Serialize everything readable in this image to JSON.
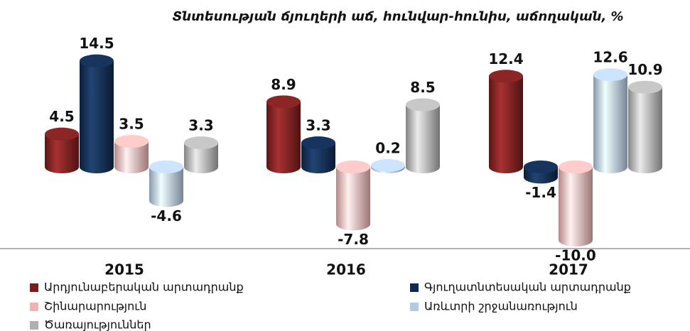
{
  "chart_data": {
    "type": "bar3d",
    "title": "Տնտեսության ճյուղերի աճ, հունվար-հունիս, աճողական, %",
    "categories": [
      "2015",
      "2016",
      "2017"
    ],
    "series": [
      {
        "name": "Արդյունաբերական արտադրանք",
        "color": "#7a1c1c",
        "values": [
          4.5,
          8.9,
          12.4
        ]
      },
      {
        "name": "Գյուղատնտեսական արտադրանք",
        "color": "#0f2a50",
        "values": [
          14.5,
          3.3,
          -1.4
        ]
      },
      {
        "name": "Շինարարություն",
        "color": "#f0b4b4",
        "values": [
          3.5,
          -7.8,
          -10.0
        ],
        "value_labels": [
          "3.5",
          "-7.8",
          "-10.0"
        ]
      },
      {
        "name": "Առևտրի շրջանառություն",
        "color": "#b4cae6",
        "values": [
          -4.6,
          0.2,
          12.6
        ]
      },
      {
        "name": "Ծառայություններ",
        "color": "#b0b0b0",
        "values": [
          3.3,
          8.5,
          10.9
        ]
      }
    ],
    "legend": "bottom"
  }
}
